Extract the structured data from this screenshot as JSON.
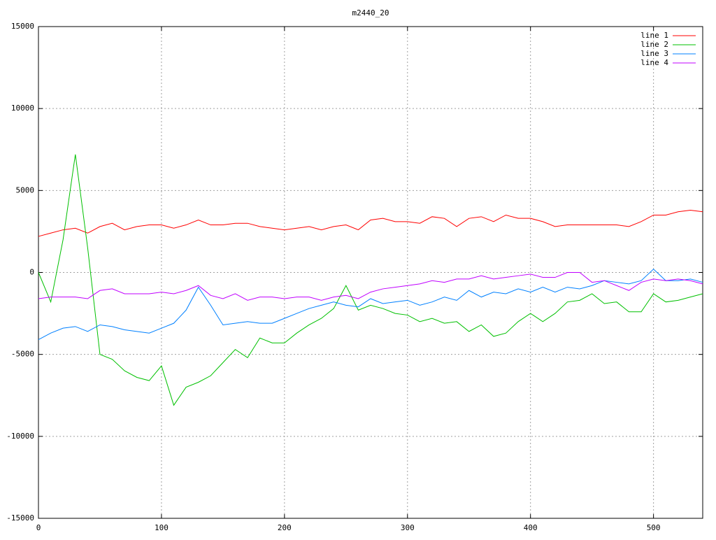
{
  "chart_data": {
    "type": "line",
    "title": "m2440_20",
    "x": [
      0,
      10,
      20,
      30,
      40,
      50,
      60,
      70,
      80,
      90,
      100,
      110,
      120,
      130,
      140,
      150,
      160,
      170,
      180,
      190,
      200,
      210,
      220,
      230,
      240,
      250,
      260,
      270,
      280,
      290,
      300,
      310,
      320,
      330,
      340,
      350,
      360,
      370,
      380,
      390,
      400,
      410,
      420,
      430,
      440,
      450,
      460,
      470,
      480,
      490,
      500,
      510,
      520,
      530,
      540
    ],
    "series": [
      {
        "name": "line 1",
        "color": "#ff0000",
        "values": [
          2200,
          2400,
          2600,
          2700,
          2400,
          2800,
          3000,
          2600,
          2800,
          2900,
          2900,
          2700,
          2900,
          3200,
          2900,
          2900,
          3000,
          3000,
          2800,
          2700,
          2600,
          2700,
          2800,
          2600,
          2800,
          2900,
          2600,
          3200,
          3300,
          3100,
          3100,
          3000,
          3400,
          3300,
          2800,
          3300,
          3400,
          3100,
          3500,
          3300,
          3300,
          3100,
          2800,
          2900,
          2900,
          2900,
          2900,
          2900,
          2800,
          3100,
          3500,
          3500,
          3700,
          3800,
          3700
        ]
      },
      {
        "name": "line 2",
        "color": "#00c000",
        "values": [
          0,
          -1800,
          2000,
          7200,
          1500,
          -5000,
          -5300,
          -6000,
          -6400,
          -6600,
          -5700,
          -8100,
          -7000,
          -6700,
          -6300,
          -5500,
          -4700,
          -5200,
          -4000,
          -4300,
          -4300,
          -3700,
          -3200,
          -2800,
          -2200,
          -800,
          -2300,
          -2000,
          -2200,
          -2500,
          -2600,
          -3000,
          -2800,
          -3100,
          -3000,
          -3600,
          -3200,
          -3900,
          -3700,
          -3000,
          -2500,
          -3000,
          -2500,
          -1800,
          -1700,
          -1300,
          -1900,
          -1800,
          -2400,
          -2400,
          -1300,
          -1800,
          -1700,
          -1500,
          -1300
        ]
      },
      {
        "name": "line 3",
        "color": "#0080ff",
        "values": [
          -4100,
          -3700,
          -3400,
          -3300,
          -3600,
          -3200,
          -3300,
          -3500,
          -3600,
          -3700,
          -3400,
          -3100,
          -2300,
          -900,
          -2000,
          -3200,
          -3100,
          -3000,
          -3100,
          -3100,
          -2800,
          -2500,
          -2200,
          -2000,
          -1800,
          -2000,
          -2100,
          -1600,
          -1900,
          -1800,
          -1700,
          -2000,
          -1800,
          -1500,
          -1700,
          -1100,
          -1500,
          -1200,
          -1300,
          -1000,
          -1200,
          -900,
          -1200,
          -900,
          -1000,
          -800,
          -500,
          -600,
          -700,
          -500,
          200,
          -500,
          -500,
          -400,
          -600
        ]
      },
      {
        "name": "line 4",
        "color": "#c000ff",
        "values": [
          -1600,
          -1500,
          -1500,
          -1500,
          -1600,
          -1100,
          -1000,
          -1300,
          -1300,
          -1300,
          -1200,
          -1300,
          -1100,
          -800,
          -1400,
          -1600,
          -1300,
          -1700,
          -1500,
          -1500,
          -1600,
          -1500,
          -1500,
          -1700,
          -1500,
          -1400,
          -1600,
          -1200,
          -1000,
          -900,
          -800,
          -700,
          -500,
          -600,
          -400,
          -400,
          -200,
          -400,
          -300,
          -200,
          -100,
          -300,
          -300,
          0,
          0,
          -600,
          -500,
          -800,
          -1100,
          -600,
          -400,
          -500,
          -400,
          -500,
          -700
        ]
      }
    ],
    "xlim": [
      0,
      540
    ],
    "xticks": [
      0,
      100,
      200,
      300,
      400,
      500
    ],
    "ylim": [
      -15000,
      15000
    ],
    "yticks": [
      -15000,
      -10000,
      -5000,
      0,
      5000,
      10000,
      15000
    ],
    "grid": true,
    "legend": "top-right"
  }
}
